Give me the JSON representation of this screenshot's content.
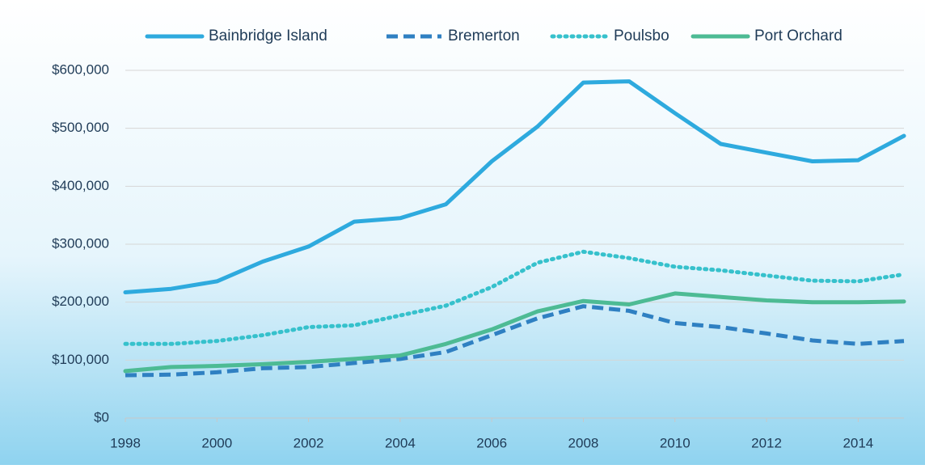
{
  "chart_data": {
    "type": "line",
    "x": [
      1998,
      1999,
      2000,
      2001,
      2002,
      2003,
      2004,
      2005,
      2006,
      2007,
      2008,
      2009,
      2010,
      2011,
      2012,
      2013,
      2014,
      2015
    ],
    "xlim": [
      1998,
      2015
    ],
    "xticks": [
      1998,
      2000,
      2002,
      2004,
      2006,
      2008,
      2010,
      2012,
      2014
    ],
    "ylim": [
      0,
      600000
    ],
    "yticks": [
      {
        "value": 0,
        "label": "$0"
      },
      {
        "value": 100000,
        "label": "$100,000"
      },
      {
        "value": 200000,
        "label": "$200,000"
      },
      {
        "value": 300000,
        "label": "$300,000"
      },
      {
        "value": 400000,
        "label": "$400,000"
      },
      {
        "value": 500000,
        "label": "$500,000"
      },
      {
        "value": 600000,
        "label": "$600,000"
      }
    ],
    "grid": true,
    "legend": "top",
    "series": [
      {
        "name": "Bainbridge Island",
        "color": "#2eaade",
        "dash": "solid",
        "values": [
          217000,
          223000,
          236000,
          270000,
          296000,
          339000,
          345000,
          369000,
          443000,
          503000,
          579000,
          581000,
          526000,
          473000,
          458000,
          443000,
          445000,
          487000
        ]
      },
      {
        "name": "Bremerton",
        "color": "#2f80c2",
        "dash": "dashed",
        "values": [
          74000,
          75000,
          79000,
          86000,
          88000,
          95000,
          102000,
          114000,
          143000,
          172000,
          193000,
          185000,
          164000,
          157000,
          146000,
          134000,
          128000,
          133000
        ]
      },
      {
        "name": "Poulsbo",
        "color": "#36c1cc",
        "dash": "dotted",
        "values": [
          128000,
          128000,
          133000,
          143000,
          157000,
          160000,
          177000,
          194000,
          226000,
          268000,
          287000,
          276000,
          261000,
          255000,
          246000,
          237000,
          236000,
          248000
        ]
      },
      {
        "name": "Port Orchard",
        "color": "#4dbb94",
        "dash": "solid",
        "values": [
          81000,
          88000,
          90000,
          93000,
          97000,
          102000,
          108000,
          128000,
          153000,
          184000,
          202000,
          196000,
          215000,
          209000,
          203000,
          200000,
          200000,
          201000
        ]
      }
    ]
  }
}
